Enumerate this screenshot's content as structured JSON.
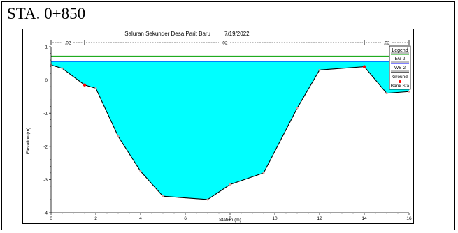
{
  "caption": "STA. 0+850",
  "chart_data": {
    "type": "line",
    "title": "Saluran Sekunder Desa Parit Baru",
    "date": "7/19/2022",
    "xlabel": "Station (m)",
    "ylabel": "Elevation (m)",
    "xlim": [
      0,
      16
    ],
    "ylim": [
      -4,
      1
    ],
    "x_ticks": [
      "0",
      "2",
      "4",
      "6",
      "8",
      "10",
      "12",
      "14",
      "16"
    ],
    "y_ticks": [
      "1",
      "0",
      "-1",
      "-2",
      "-3",
      "-4"
    ],
    "manning": [
      {
        "value": ".02",
        "from": 0,
        "to": 1.5
      },
      {
        "value": ".02",
        "from": 1.5,
        "to": 14
      },
      {
        "value": ".02",
        "from": 14,
        "to": 16
      }
    ],
    "legend_title": "Legend",
    "legend_position": "right",
    "series": [
      {
        "name": "EG 2",
        "color": "#00a000",
        "elevation": 0.72
      },
      {
        "name": "WS 2",
        "color": "#0000ff",
        "elevation": 0.56
      },
      {
        "name": "Ground",
        "color": "#000000",
        "x": [
          0,
          0.5,
          1.5,
          2,
          3,
          4,
          5,
          7,
          8,
          9.5,
          11,
          12,
          14,
          15,
          16
        ],
        "y": [
          0.45,
          0.35,
          -0.15,
          -0.25,
          -1.7,
          -2.75,
          -3.5,
          -3.6,
          -3.15,
          -2.8,
          -0.85,
          0.3,
          0.4,
          -0.4,
          -0.35
        ]
      },
      {
        "name": "Bank Sta",
        "color": "#ff0000",
        "x": [
          1.5,
          14
        ],
        "y": [
          -0.15,
          0.4
        ]
      }
    ],
    "water_fill_color": "#00ffff"
  }
}
